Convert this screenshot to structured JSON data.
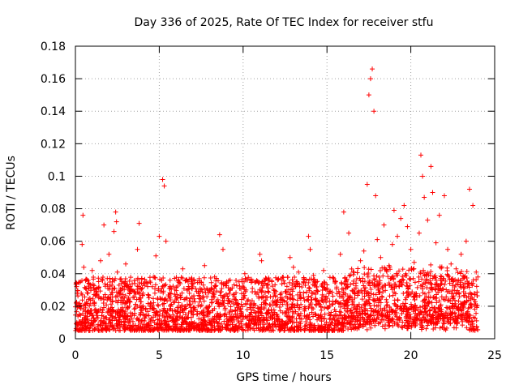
{
  "chart_data": {
    "type": "scatter",
    "title": "Day 336 of 2025, Rate Of TEC Index for receiver stfu",
    "xlabel": "GPS time / hours",
    "ylabel": "ROTI / TECUs",
    "xlim": [
      0,
      25
    ],
    "ylim": [
      0,
      0.18
    ],
    "xticks": [
      0,
      5,
      10,
      15,
      20,
      25
    ],
    "xtick_labels": [
      "0",
      "5",
      "10",
      "15",
      "20",
      "25"
    ],
    "yticks": [
      0,
      0.02,
      0.04,
      0.06,
      0.08,
      0.1,
      0.12,
      0.14,
      0.16,
      0.18
    ],
    "ytick_labels": [
      "0",
      "0.02",
      "0.04",
      "0.06",
      "0.08",
      "0.1",
      "0.12",
      "0.14",
      "0.16",
      "0.18"
    ],
    "grid": true,
    "marker": "plus",
    "color": "#ff0000",
    "series": [
      {
        "name": "ROTI",
        "x": [
          0.1,
          0.2,
          0.3,
          0.4,
          0.45,
          0.5,
          0.6,
          0.8,
          1.0,
          1.2,
          1.4,
          1.5,
          1.7,
          1.9,
          2.0,
          2.1,
          2.3,
          2.4,
          2.45,
          2.5,
          2.6,
          2.8,
          3.0,
          3.2,
          3.5,
          3.7,
          3.8,
          4.0,
          4.3,
          4.5,
          4.8,
          5.0,
          5.2,
          5.3,
          5.4,
          5.6,
          6.0,
          6.4,
          6.8,
          7.0,
          7.4,
          7.7,
          8.0,
          8.3,
          8.6,
          8.8,
          9.0,
          9.4,
          9.8,
          10.1,
          10.4,
          10.7,
          11.0,
          11.1,
          11.4,
          11.8,
          12.1,
          12.5,
          12.8,
          13.0,
          13.3,
          13.6,
          13.9,
          14.0,
          14.2,
          14.4,
          14.8,
          15.0,
          15.4,
          15.8,
          16.0,
          16.3,
          16.6,
          17.0,
          17.2,
          17.4,
          17.5,
          17.6,
          17.7,
          17.8,
          17.9,
          18.0,
          18.2,
          18.4,
          18.7,
          18.9,
          19.0,
          19.2,
          19.4,
          19.6,
          19.8,
          20.0,
          20.2,
          20.5,
          20.6,
          20.7,
          20.8,
          21.0,
          21.2,
          21.3,
          21.5,
          21.7,
          22.0,
          22.2,
          22.4,
          22.7,
          23.0,
          23.3,
          23.5,
          23.7,
          23.9,
          24.0
        ],
        "y": [
          0.028,
          0.021,
          0.035,
          0.058,
          0.076,
          0.044,
          0.019,
          0.031,
          0.042,
          0.018,
          0.026,
          0.048,
          0.07,
          0.037,
          0.052,
          0.024,
          0.066,
          0.078,
          0.072,
          0.041,
          0.033,
          0.025,
          0.046,
          0.023,
          0.029,
          0.055,
          0.071,
          0.027,
          0.034,
          0.022,
          0.051,
          0.063,
          0.098,
          0.094,
          0.06,
          0.031,
          0.024,
          0.043,
          0.028,
          0.032,
          0.026,
          0.045,
          0.03,
          0.038,
          0.064,
          0.055,
          0.034,
          0.027,
          0.031,
          0.04,
          0.036,
          0.029,
          0.052,
          0.048,
          0.033,
          0.026,
          0.037,
          0.029,
          0.05,
          0.044,
          0.041,
          0.035,
          0.063,
          0.055,
          0.039,
          0.032,
          0.042,
          0.03,
          0.037,
          0.052,
          0.078,
          0.065,
          0.041,
          0.048,
          0.054,
          0.095,
          0.15,
          0.16,
          0.166,
          0.14,
          0.088,
          0.061,
          0.05,
          0.07,
          0.045,
          0.058,
          0.079,
          0.063,
          0.074,
          0.082,
          0.069,
          0.055,
          0.047,
          0.065,
          0.113,
          0.1,
          0.087,
          0.073,
          0.106,
          0.09,
          0.059,
          0.076,
          0.088,
          0.055,
          0.046,
          0.043,
          0.052,
          0.06,
          0.092,
          0.082,
          0.041,
          0.038
        ]
      }
    ]
  }
}
